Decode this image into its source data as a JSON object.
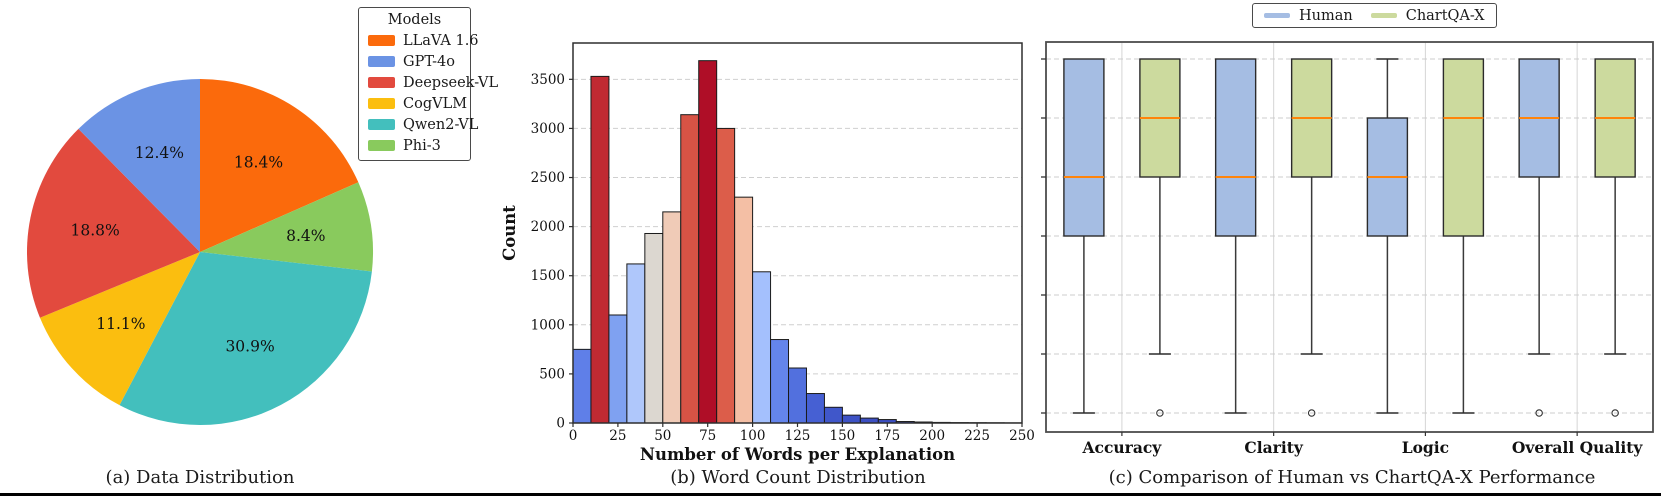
{
  "figure": {
    "captions": {
      "a": "(a) Data Distribution",
      "b": "(b) Word Count Distribution",
      "c": "(c) Comparison of Human vs ChartQA-X Performance"
    }
  },
  "chart_data": [
    {
      "id": "pie",
      "type": "pie",
      "caption": "(a) Data Distribution",
      "slices": [
        {
          "label": "LLaVA 1.6",
          "pct": 18.4,
          "color": "#FB6A0C"
        },
        {
          "label": "Phi-3",
          "pct": 8.4,
          "color": "#89CA5D"
        },
        {
          "label": "Qwen2-VL",
          "pct": 30.9,
          "color": "#43BFBD"
        },
        {
          "label": "CogVLM",
          "pct": 11.1,
          "color": "#FBBE0F"
        },
        {
          "label": "Deepseek-VL",
          "pct": 18.8,
          "color": "#E24A3E"
        },
        {
          "label": "GPT-4o",
          "pct": 12.4,
          "color": "#6B93E4"
        }
      ],
      "legend": {
        "title": "Models",
        "items": [
          {
            "label": "LLaVA 1.6",
            "color": "#FB6A0C"
          },
          {
            "label": "GPT-4o",
            "color": "#6B93E4"
          },
          {
            "label": "Deepseek-VL",
            "color": "#E24A3E"
          },
          {
            "label": "CogVLM",
            "color": "#FBBE0F"
          },
          {
            "label": "Qwen2-VL",
            "color": "#43BFBD"
          },
          {
            "label": "Phi-3",
            "color": "#89CA5D"
          }
        ]
      },
      "start_angle_deg_from_top_clockwise": 0
    },
    {
      "id": "histogram",
      "type": "bar",
      "caption": "(b) Word Count Distribution",
      "xlabel": "Number of Words per Explanation",
      "ylabel": "Count",
      "bin_start": 0,
      "bin_width": 10,
      "counts": [
        750,
        3530,
        1100,
        1620,
        1930,
        2150,
        3140,
        3690,
        3000,
        2300,
        1540,
        850,
        560,
        300,
        160,
        80,
        50,
        35,
        15,
        10,
        6,
        4,
        3,
        2,
        1
      ],
      "bar_colors": [
        "#5F7FE8",
        "#C02A32",
        "#7FA1F1",
        "#AFC7FB",
        "#DCD7D0",
        "#F0CBB7",
        "#D75345",
        "#AF0E27",
        "#DC5D4A",
        "#F4BFA5",
        "#A4C0FD",
        "#6485EC",
        "#5270DE",
        "#4660D3",
        "#4057CA",
        "#3D52C5",
        "#3C4FC2",
        "#3B4EC1",
        "#3B4CC0",
        "#3B4CC0",
        "#3B4CC0",
        "#3B4CC0",
        "#3B4CC0",
        "#3B4CC0",
        "#3B4CC0"
      ],
      "xticks": [
        0,
        25,
        50,
        75,
        100,
        125,
        150,
        175,
        200,
        225,
        250
      ],
      "yticks": [
        0,
        500,
        1000,
        1500,
        2000,
        2500,
        3000,
        3500
      ],
      "xlim": [
        0,
        250
      ],
      "ylim": [
        0,
        3870
      ],
      "grid": "horizontal-dashed"
    },
    {
      "id": "boxplot",
      "type": "boxplot",
      "caption": "(c) Comparison of Human vs ChartQA-X Performance",
      "categories": [
        "Accuracy",
        "Clarity",
        "Logic",
        "Overall Quality"
      ],
      "series": [
        {
          "name": "Human",
          "color": "#A5BDE3",
          "boxes": [
            {
              "whislo": 2.0,
              "q1": 3.5,
              "med": 4.0,
              "q3": 5.0,
              "whishi": 5.0,
              "fliers": []
            },
            {
              "whislo": 2.0,
              "q1": 3.5,
              "med": 4.0,
              "q3": 5.0,
              "whishi": 5.0,
              "fliers": []
            },
            {
              "whislo": 2.0,
              "q1": 3.5,
              "med": 4.0,
              "q3": 4.5,
              "whishi": 5.0,
              "fliers": []
            },
            {
              "whislo": 2.5,
              "q1": 4.0,
              "med": 4.5,
              "q3": 5.0,
              "whishi": 5.0,
              "fliers": [
                2.0
              ]
            }
          ]
        },
        {
          "name": "ChartQA-X",
          "color": "#CCDA9E",
          "boxes": [
            {
              "whislo": 2.5,
              "q1": 4.0,
              "med": 4.5,
              "q3": 5.0,
              "whishi": 5.0,
              "fliers": [
                2.0
              ]
            },
            {
              "whislo": 2.5,
              "q1": 4.0,
              "med": 4.5,
              "q3": 5.0,
              "whishi": 5.0,
              "fliers": [
                2.0
              ]
            },
            {
              "whislo": 2.0,
              "q1": 3.5,
              "med": 4.5,
              "q3": 5.0,
              "whishi": 5.0,
              "fliers": []
            },
            {
              "whislo": 2.5,
              "q1": 4.0,
              "med": 4.5,
              "q3": 5.0,
              "whishi": 5.0,
              "fliers": [
                2.0
              ]
            }
          ]
        }
      ],
      "median_color": "#FF840A",
      "yticks": [
        2.0,
        2.5,
        3.0,
        3.5,
        4.0,
        4.5,
        5.0
      ],
      "ytick_labels_visible": false,
      "ylim": [
        1.84,
        5.14
      ],
      "grid": "horizontal-dashed-plus-vertical-category-lines",
      "legend_position": "top-center"
    }
  ]
}
